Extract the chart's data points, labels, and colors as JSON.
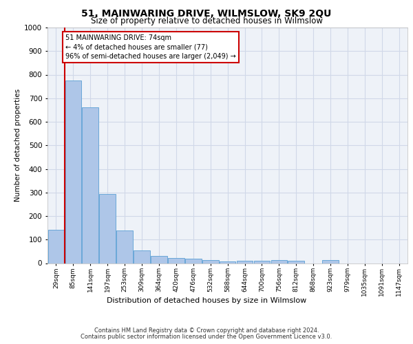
{
  "title": "51, MAINWARING DRIVE, WILMSLOW, SK9 2QU",
  "subtitle": "Size of property relative to detached houses in Wilmslow",
  "xlabel": "Distribution of detached houses by size in Wilmslow",
  "ylabel": "Number of detached properties",
  "categories": [
    "29sqm",
    "85sqm",
    "141sqm",
    "197sqm",
    "253sqm",
    "309sqm",
    "364sqm",
    "420sqm",
    "476sqm",
    "532sqm",
    "588sqm",
    "644sqm",
    "700sqm",
    "756sqm",
    "812sqm",
    "868sqm",
    "923sqm",
    "979sqm",
    "1035sqm",
    "1091sqm",
    "1147sqm"
  ],
  "values": [
    143,
    775,
    660,
    293,
    138,
    53,
    30,
    21,
    20,
    14,
    8,
    11,
    11,
    12,
    9,
    0,
    12,
    0,
    0,
    0,
    0
  ],
  "bar_color": "#aec6e8",
  "bar_edge_color": "#5a9fd4",
  "annotation_line1": "51 MAINWARING DRIVE: 74sqm",
  "annotation_line2": "← 4% of detached houses are smaller (77)",
  "annotation_line3": "96% of semi-detached houses are larger (2,049) →",
  "annotation_box_color": "#cc0000",
  "property_line_x": 0.5,
  "ylim": [
    0,
    1000
  ],
  "yticks": [
    0,
    100,
    200,
    300,
    400,
    500,
    600,
    700,
    800,
    900,
    1000
  ],
  "grid_color": "#d0d8e8",
  "background_color": "#eef2f8",
  "footer_line1": "Contains HM Land Registry data © Crown copyright and database right 2024.",
  "footer_line2": "Contains public sector information licensed under the Open Government Licence v3.0."
}
